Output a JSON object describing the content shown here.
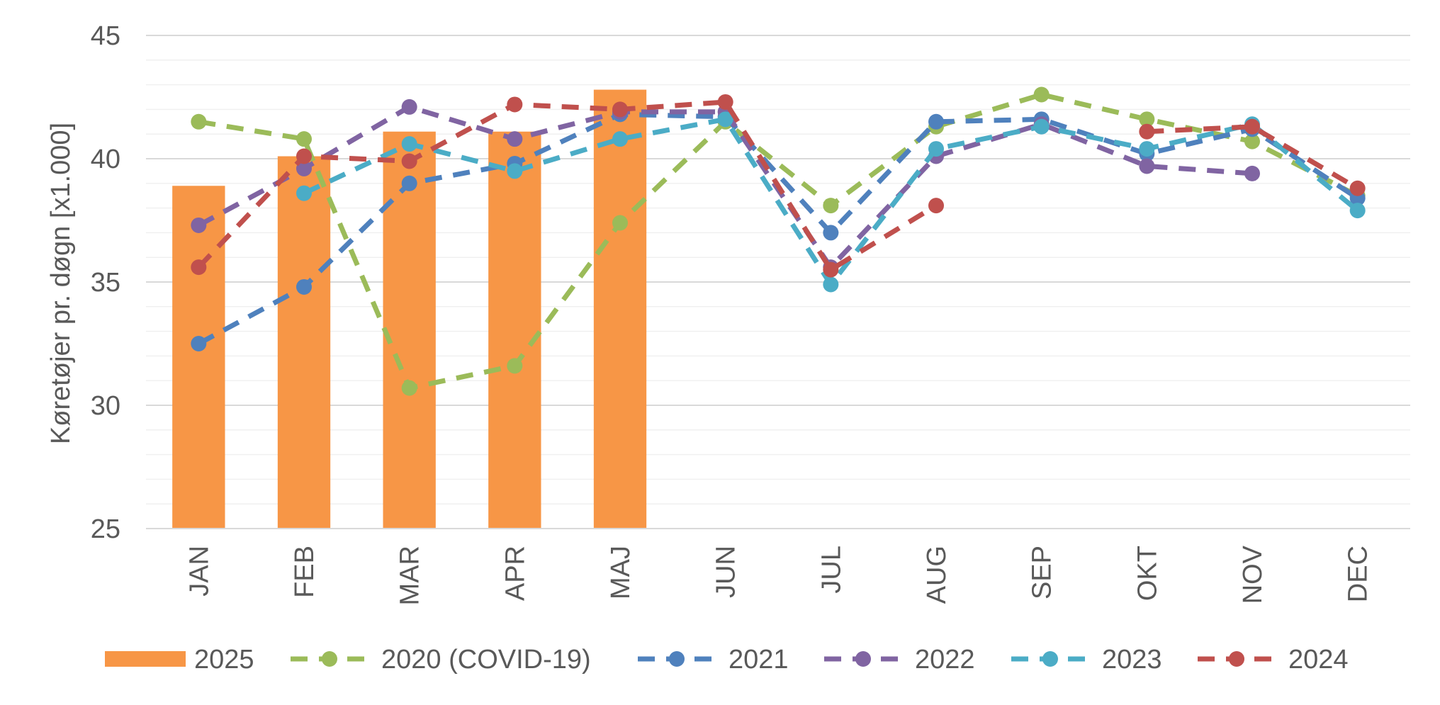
{
  "chart_data": {
    "type": "bar",
    "title": "",
    "xlabel": "",
    "ylabel": "Køretøjer pr. døgn [x1.000]",
    "ylim": [
      25,
      45
    ],
    "yticks": [
      25,
      30,
      35,
      40,
      45
    ],
    "grid": true,
    "legend_position": "bottom",
    "categories": [
      "JAN",
      "FEB",
      "MAR",
      "APR",
      "MAJ",
      "JUN",
      "JUL",
      "AUG",
      "SEP",
      "OKT",
      "NOV",
      "DEC"
    ],
    "bars": {
      "name": "2025",
      "color": "#F79646",
      "values": [
        38.9,
        40.1,
        41.1,
        41.1,
        42.8,
        null,
        null,
        null,
        null,
        null,
        null,
        null
      ]
    },
    "series": [
      {
        "name": "2020 (COVID-19)",
        "type": "line",
        "color": "#9BBB59",
        "values": [
          41.5,
          40.8,
          30.7,
          31.6,
          37.4,
          41.5,
          38.1,
          41.3,
          42.6,
          41.6,
          40.7,
          38.5
        ]
      },
      {
        "name": "2021",
        "type": "line",
        "color": "#4F81BD",
        "values": [
          32.5,
          34.8,
          39.0,
          39.8,
          41.8,
          41.7,
          37.0,
          41.5,
          41.6,
          40.2,
          41.2,
          38.4
        ]
      },
      {
        "name": "2022",
        "type": "line",
        "color": "#8064A2",
        "values": [
          37.3,
          39.6,
          42.1,
          40.8,
          41.9,
          41.9,
          35.6,
          40.1,
          41.4,
          39.7,
          39.4,
          null
        ]
      },
      {
        "name": "2023",
        "type": "line",
        "color": "#4BACC6",
        "values": [
          null,
          38.6,
          40.6,
          39.5,
          40.8,
          41.6,
          34.9,
          40.4,
          41.3,
          40.4,
          41.4,
          37.9
        ]
      },
      {
        "name": "2024",
        "type": "line",
        "color": "#C0504D",
        "values": [
          35.6,
          40.1,
          39.9,
          42.2,
          42.0,
          42.3,
          35.5,
          38.1,
          null,
          41.1,
          41.3,
          38.8
        ]
      }
    ]
  }
}
